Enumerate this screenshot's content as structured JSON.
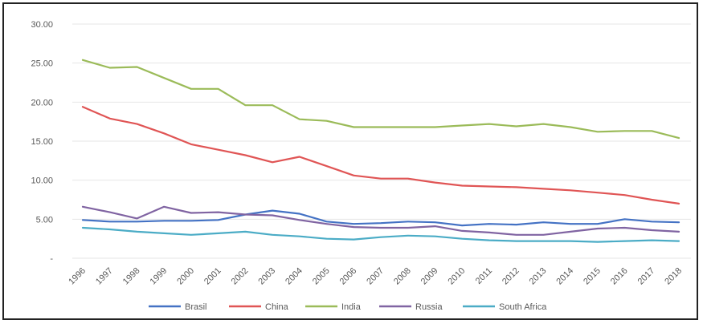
{
  "chart_data": {
    "type": "line",
    "title": "",
    "xlabel": "",
    "ylabel": "",
    "ylim": [
      0,
      30
    ],
    "y_ticks": [
      "-",
      "5.00",
      "10.00",
      "15.00",
      "20.00",
      "25.00",
      "30.00"
    ],
    "grid": true,
    "legend_position": "bottom",
    "categories": [
      "1996",
      "1997",
      "1998",
      "1999",
      "2000",
      "2001",
      "2002",
      "2003",
      "2004",
      "2005",
      "2006",
      "2007",
      "2008",
      "2009",
      "2010",
      "2011",
      "2012",
      "2013",
      "2014",
      "2015",
      "2016",
      "2017",
      "2018"
    ],
    "series": [
      {
        "name": "Brasil",
        "color": "#4472C4",
        "values": [
          4.9,
          4.7,
          4.7,
          4.8,
          4.8,
          4.9,
          5.6,
          6.1,
          5.7,
          4.7,
          4.4,
          4.5,
          4.7,
          4.6,
          4.2,
          4.4,
          4.3,
          4.6,
          4.4,
          4.4,
          5.0,
          4.7,
          4.6
        ]
      },
      {
        "name": "China",
        "color": "#E05555",
        "values": [
          19.4,
          17.9,
          17.2,
          16.0,
          14.6,
          13.9,
          13.2,
          12.3,
          13.0,
          11.8,
          10.6,
          10.2,
          10.2,
          9.7,
          9.3,
          9.2,
          9.1,
          8.9,
          8.7,
          8.4,
          8.1,
          7.5,
          7.0
        ]
      },
      {
        "name": "India",
        "color": "#9BBB59",
        "values": [
          25.4,
          24.4,
          24.5,
          23.1,
          21.7,
          21.7,
          19.6,
          19.6,
          17.8,
          17.6,
          16.8,
          16.8,
          16.8,
          16.8,
          17.0,
          17.2,
          16.9,
          17.2,
          16.8,
          16.2,
          16.3,
          16.3,
          15.4
        ]
      },
      {
        "name": "Russia",
        "color": "#8064A2",
        "values": [
          6.6,
          5.9,
          5.1,
          6.6,
          5.8,
          5.9,
          5.6,
          5.5,
          4.9,
          4.4,
          4.0,
          3.9,
          3.9,
          4.1,
          3.5,
          3.3,
          3.0,
          3.0,
          3.4,
          3.8,
          3.9,
          3.6,
          3.4
        ]
      },
      {
        "name": "South Africa",
        "color": "#4BACC6",
        "values": [
          3.9,
          3.7,
          3.4,
          3.2,
          3.0,
          3.2,
          3.4,
          3.0,
          2.8,
          2.5,
          2.4,
          2.7,
          2.9,
          2.8,
          2.5,
          2.3,
          2.2,
          2.2,
          2.2,
          2.1,
          2.2,
          2.3,
          2.2
        ]
      }
    ]
  }
}
